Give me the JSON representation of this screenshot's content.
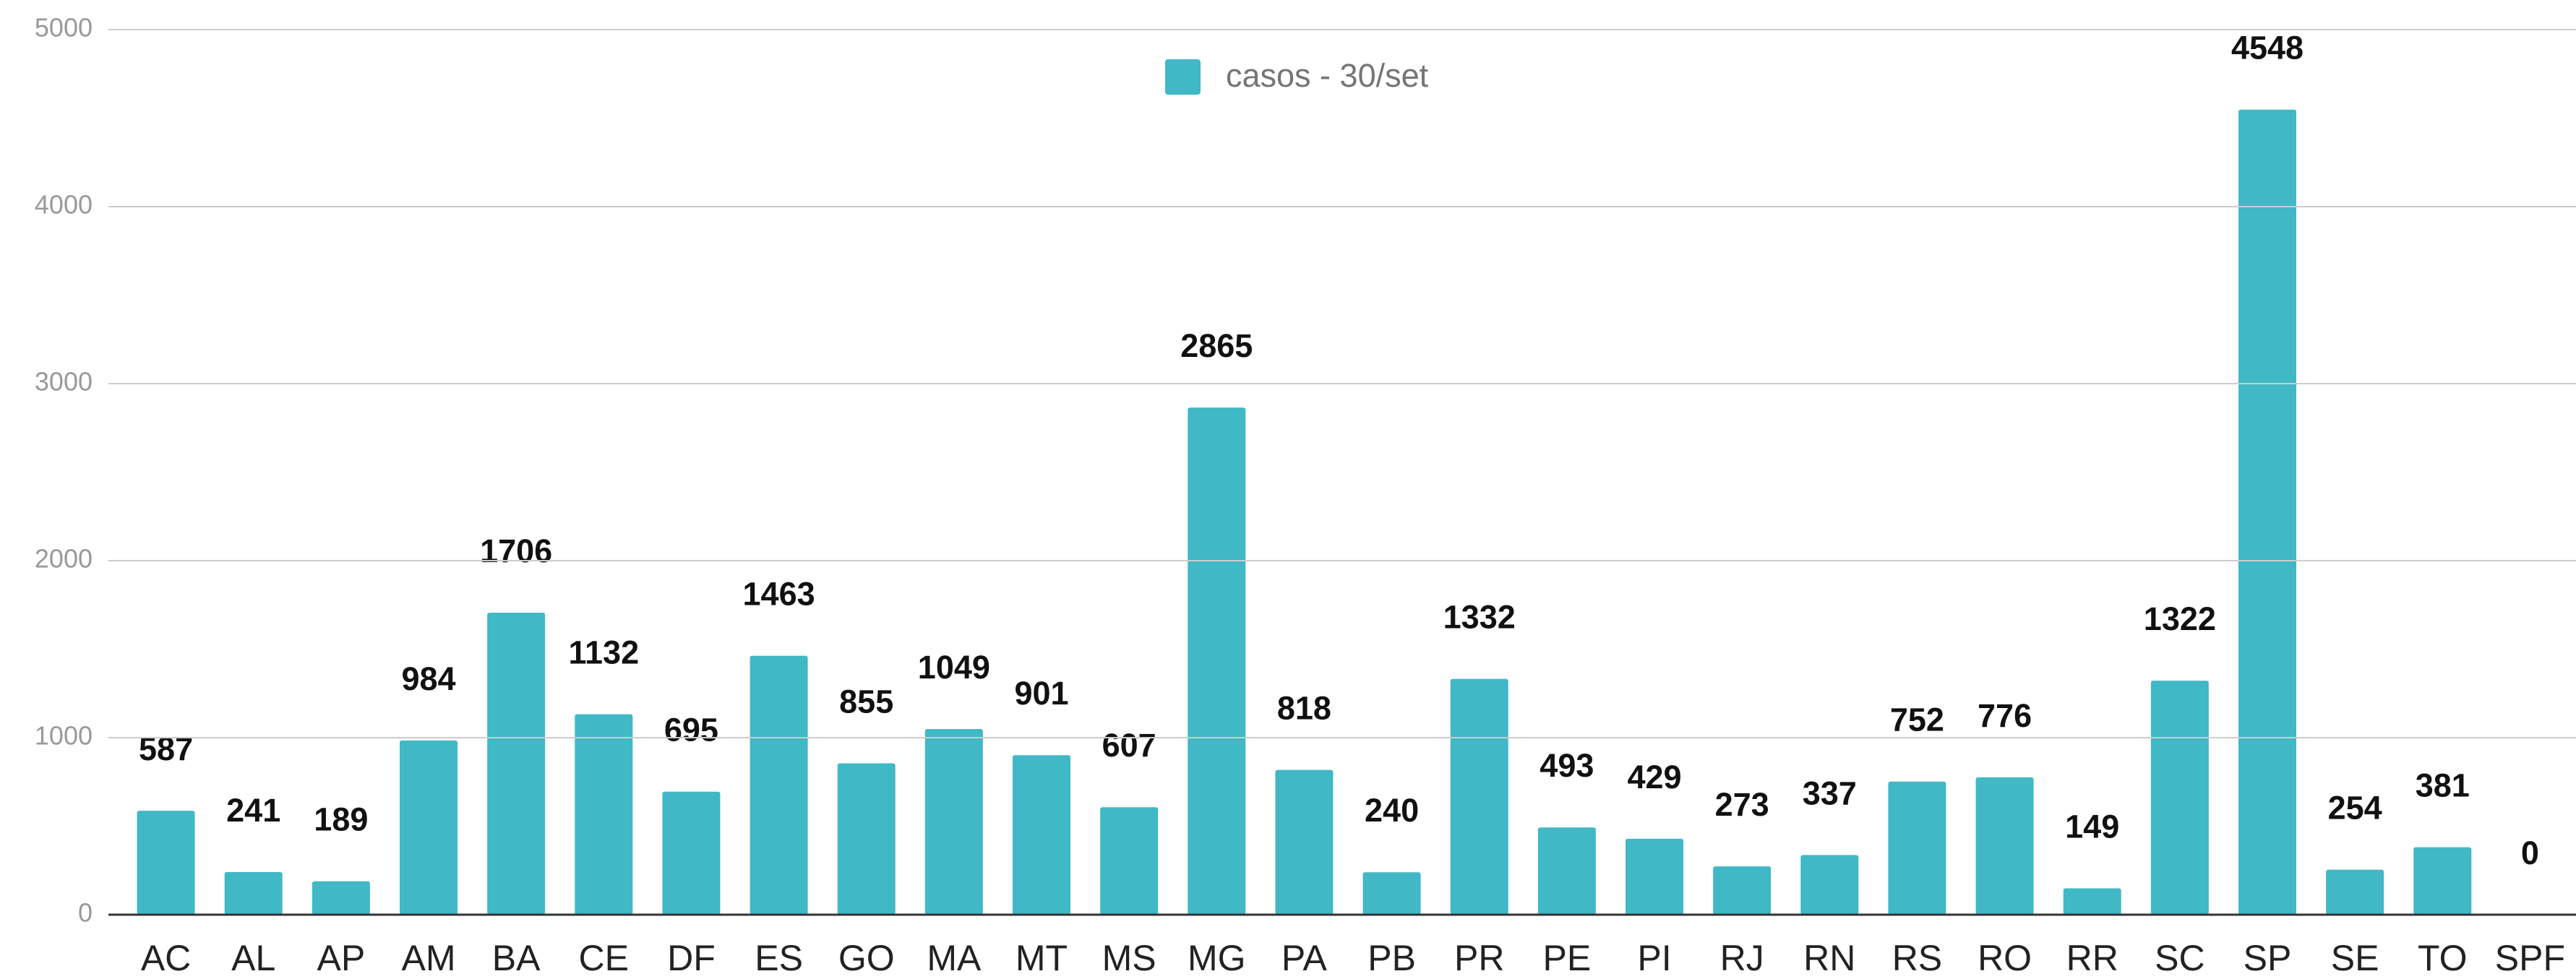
{
  "chart_data": {
    "type": "bar",
    "categories": [
      "AC",
      "AL",
      "AP",
      "AM",
      "BA",
      "CE",
      "DF",
      "ES",
      "GO",
      "MA",
      "MT",
      "MS",
      "MG",
      "PA",
      "PB",
      "PR",
      "PE",
      "PI",
      "RJ",
      "RN",
      "RS",
      "RO",
      "RR",
      "SC",
      "SP",
      "SE",
      "TO",
      "SPF"
    ],
    "series": [
      {
        "name": "casos - 30/set",
        "color": "#40b8c6",
        "values": [
          587,
          241,
          189,
          984,
          1706,
          1132,
          695,
          1463,
          855,
          1049,
          901,
          607,
          2865,
          818,
          240,
          1332,
          493,
          429,
          273,
          337,
          752,
          776,
          149,
          1322,
          4548,
          254,
          381,
          0
        ]
      }
    ],
    "ylim": [
      0,
      5000
    ],
    "yticks": [
      0,
      1000,
      2000,
      3000,
      4000,
      5000
    ],
    "grid": true,
    "legend": "top"
  }
}
